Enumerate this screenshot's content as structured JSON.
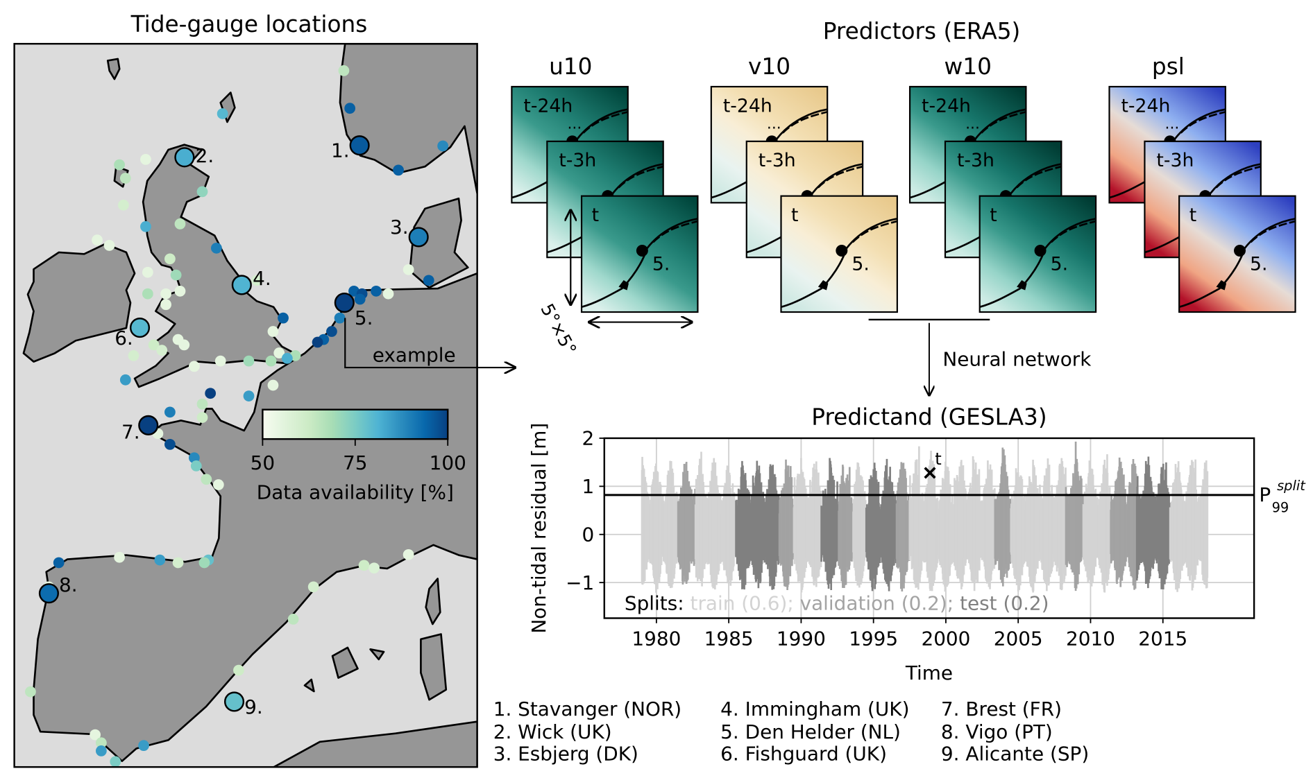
{
  "map": {
    "title": "Tide-gauge locations",
    "extent_lon": [
      -11.4,
      11.5
    ],
    "extent_lat": [
      35.9,
      62.8
    ],
    "land_color": "#969696",
    "sea_color": "#dcdcdc",
    "colorbar": {
      "label": "Data availability [%]",
      "ticks": [
        "50",
        "75",
        "100"
      ],
      "min": 50,
      "max": 100,
      "stops": [
        "#f7fcf0",
        "#e0f3db",
        "#ccebc5",
        "#a8ddb5",
        "#7bccc4",
        "#4eb3d3",
        "#2b8cbe",
        "#0868ac",
        "#084081"
      ]
    },
    "example_label": "example",
    "highlighted": [
      {
        "id": "1.",
        "name": "Stavanger (NOR)",
        "lon": 5.68,
        "lat": 59.02,
        "avail": 96
      },
      {
        "id": "2.",
        "name": "Wick (UK)",
        "lon": -2.98,
        "lat": 58.58,
        "avail": 82
      },
      {
        "id": "3.",
        "name": "Esbjerg (DK)",
        "lon": 8.6,
        "lat": 55.61,
        "avail": 90
      },
      {
        "id": "4.",
        "name": "Immingham (UK)",
        "lon": -0.15,
        "lat": 53.83,
        "avail": 81
      },
      {
        "id": "5.",
        "name": "Den Helder (NL)",
        "lon": 4.93,
        "lat": 53.17,
        "avail": 100
      },
      {
        "id": "6.",
        "name": "Fishguard (UK)",
        "lon": -5.19,
        "lat": 52.24,
        "avail": 80
      },
      {
        "id": "7.",
        "name": "Brest (FR)",
        "lon": -4.77,
        "lat": 48.61,
        "avail": 100
      },
      {
        "id": "8.",
        "name": "Vigo (PT)",
        "lon": -9.69,
        "lat": 42.36,
        "avail": 93
      },
      {
        "id": "9.",
        "name": "Alicante (SP)",
        "lon": -0.52,
        "lat": 38.33,
        "avail": 78
      }
    ],
    "stations": [
      [
        4.9,
        61.8,
        65
      ],
      [
        5.2,
        60.4,
        95
      ],
      [
        -1.1,
        60.2,
        80
      ],
      [
        9.8,
        59.0,
        88
      ],
      [
        7.6,
        58.1,
        95
      ],
      [
        -4.9,
        58.5,
        55
      ],
      [
        -6.2,
        58.3,
        68
      ],
      [
        -5.9,
        57.8,
        65
      ],
      [
        -2.1,
        57.3,
        72
      ],
      [
        -6.0,
        56.8,
        60
      ],
      [
        -4.9,
        56.0,
        82
      ],
      [
        -3.2,
        56.1,
        65
      ],
      [
        -7.3,
        55.5,
        55
      ],
      [
        -6.7,
        55.3,
        55
      ],
      [
        -1.4,
        55.2,
        90
      ],
      [
        -3.7,
        54.8,
        62
      ],
      [
        -4.8,
        54.3,
        55
      ],
      [
        -3.4,
        54.2,
        70
      ],
      [
        -4.8,
        53.5,
        68
      ],
      [
        -3.9,
        53.5,
        55
      ],
      [
        -3.2,
        53.6,
        55
      ],
      [
        -3.9,
        53.1,
        55
      ],
      [
        0.6,
        54.0,
        60
      ],
      [
        8.1,
        54.4,
        55
      ],
      [
        9.1,
        54.0,
        95
      ],
      [
        5.4,
        53.6,
        95
      ],
      [
        5.8,
        53.5,
        98
      ],
      [
        6.5,
        53.6,
        95
      ],
      [
        7.1,
        53.5,
        55
      ],
      [
        5.7,
        53.3,
        95
      ],
      [
        1.9,
        52.6,
        95
      ],
      [
        1.4,
        52.1,
        55
      ],
      [
        4.7,
        52.6,
        90
      ],
      [
        4.3,
        52.1,
        98
      ],
      [
        3.9,
        51.8,
        95
      ],
      [
        3.6,
        51.7,
        100
      ],
      [
        -3.3,
        51.8,
        55
      ],
      [
        -4.5,
        51.6,
        62
      ],
      [
        -3.0,
        51.6,
        55
      ],
      [
        -4.1,
        51.4,
        60
      ],
      [
        -5.5,
        51.2,
        60
      ],
      [
        -2.5,
        50.8,
        55
      ],
      [
        -1.2,
        51.0,
        55
      ],
      [
        0.2,
        51.0,
        70
      ],
      [
        1.3,
        51.0,
        68
      ],
      [
        1.7,
        51.3,
        55
      ],
      [
        2.5,
        51.2,
        68
      ],
      [
        2.1,
        51.1,
        82
      ],
      [
        1.4,
        50.1,
        55
      ],
      [
        -5.9,
        50.3,
        85
      ],
      [
        -1.7,
        49.8,
        100
      ],
      [
        0.2,
        49.7,
        85
      ],
      [
        -2.1,
        49.4,
        65
      ],
      [
        -2.1,
        48.9,
        62
      ],
      [
        -3.7,
        49.1,
        90
      ],
      [
        -4.3,
        48.3,
        55
      ],
      [
        -3.7,
        47.9,
        98
      ],
      [
        -2.5,
        47.4,
        88
      ],
      [
        -2.4,
        47.1,
        75
      ],
      [
        -1.9,
        46.6,
        65
      ],
      [
        -1.3,
        46.4,
        55
      ],
      [
        -9.2,
        43.5,
        95
      ],
      [
        -6.2,
        43.7,
        55
      ],
      [
        -4.2,
        43.6,
        85
      ],
      [
        -3.3,
        43.5,
        60
      ],
      [
        -1.8,
        43.6,
        78
      ],
      [
        -2.0,
        43.5,
        70
      ],
      [
        -9.7,
        42.6,
        55
      ],
      [
        3.4,
        42.6,
        60
      ],
      [
        2.4,
        41.4,
        65
      ],
      [
        5.9,
        43.4,
        62
      ],
      [
        6.4,
        43.3,
        58
      ],
      [
        8.1,
        43.8,
        55
      ],
      [
        -0.3,
        39.5,
        62
      ],
      [
        -10.6,
        38.7,
        65
      ],
      [
        -7.4,
        37.1,
        55
      ],
      [
        -7.1,
        36.8,
        65
      ],
      [
        -7.1,
        36.5,
        85
      ],
      [
        -6.4,
        36.1,
        75
      ],
      [
        -5.0,
        36.7,
        85
      ]
    ]
  },
  "predictors": {
    "title": "Predictors (ERA5)",
    "variables": [
      {
        "name": "u10",
        "palette": [
          "#00463c",
          "#1f7e72",
          "#3a9a8c",
          "#9fd8cc",
          "#dbf0eb"
        ]
      },
      {
        "name": "v10",
        "palette": [
          "#e8c98c",
          "#f3dfb3",
          "#f8eed6",
          "#e9f3f0",
          "#cfe9e3"
        ]
      },
      {
        "name": "w10",
        "palette": [
          "#003c33",
          "#16756a",
          "#3a9a8c",
          "#96d4c8",
          "#cdebe4"
        ]
      },
      {
        "name": "psl",
        "palette": [
          "#2e40c0",
          "#8fb0f0",
          "#e6dcd6",
          "#f0a584",
          "#b3122a"
        ]
      }
    ],
    "time_labels": [
      "t-24h",
      "...",
      "t-3h",
      "t"
    ],
    "station_label": "5.",
    "size_label": "5°×5°",
    "network_label": "Neural network"
  },
  "chart_data": {
    "type": "line",
    "title": "Predictand (GESLA3)",
    "xlabel": "Time",
    "ylabel": "Non-tidal residual [m]",
    "xlim": [
      1976.4,
      2021.3
    ],
    "ylim": [
      -1.74,
      2
    ],
    "xticks": [
      1980,
      1985,
      1990,
      1995,
      2000,
      2005,
      2010,
      2015
    ],
    "yticks": [
      -1,
      0,
      1,
      2
    ],
    "ytick_labels": [
      "−1",
      "0",
      "1",
      "2"
    ],
    "grid": true,
    "data_range": [
      1979.0,
      2018.1
    ],
    "colors": {
      "train": "#d3d3d3",
      "validation": "#a3a3a3",
      "test": "#808080"
    },
    "segments": [
      {
        "start": 1981.5,
        "end": 1982.7,
        "split": "validation"
      },
      {
        "start": 1985.5,
        "end": 1988.5,
        "split": "test"
      },
      {
        "start": 1988.5,
        "end": 1989.5,
        "split": "validation"
      },
      {
        "start": 1991.4,
        "end": 1992.6,
        "split": "test"
      },
      {
        "start": 1992.6,
        "end": 1993.6,
        "split": "validation"
      },
      {
        "start": 1994.5,
        "end": 1996.6,
        "split": "test"
      },
      {
        "start": 1996.6,
        "end": 1997.5,
        "split": "validation"
      },
      {
        "start": 2003.4,
        "end": 2004.5,
        "split": "validation"
      },
      {
        "start": 2008.3,
        "end": 2009.5,
        "split": "validation"
      },
      {
        "start": 2011.4,
        "end": 2013.2,
        "split": "validation"
      },
      {
        "start": 2013.2,
        "end": 2015.5,
        "split": "test"
      }
    ],
    "threshold": {
      "value": 0.82,
      "label_main": "P",
      "label_sub": "99",
      "label_sup": "split"
    },
    "marker": {
      "x": 1998.9,
      "y": 1.28,
      "label": "t"
    },
    "splits_text": {
      "prefix": "Splits:",
      "train": "train (0.6);",
      "validation": "validation (0.2);",
      "test": "test (0.2)"
    }
  },
  "legend_list": [
    [
      "1. Stavanger (NOR)",
      "2. Wick (UK)",
      "3. Esbjerg (DK)"
    ],
    [
      "4. Immingham (UK)",
      "5. Den Helder (NL)",
      "6. Fishguard (UK)"
    ],
    [
      "7. Brest (FR)",
      "8. Vigo (PT)",
      "9. Alicante (SP)"
    ]
  ]
}
